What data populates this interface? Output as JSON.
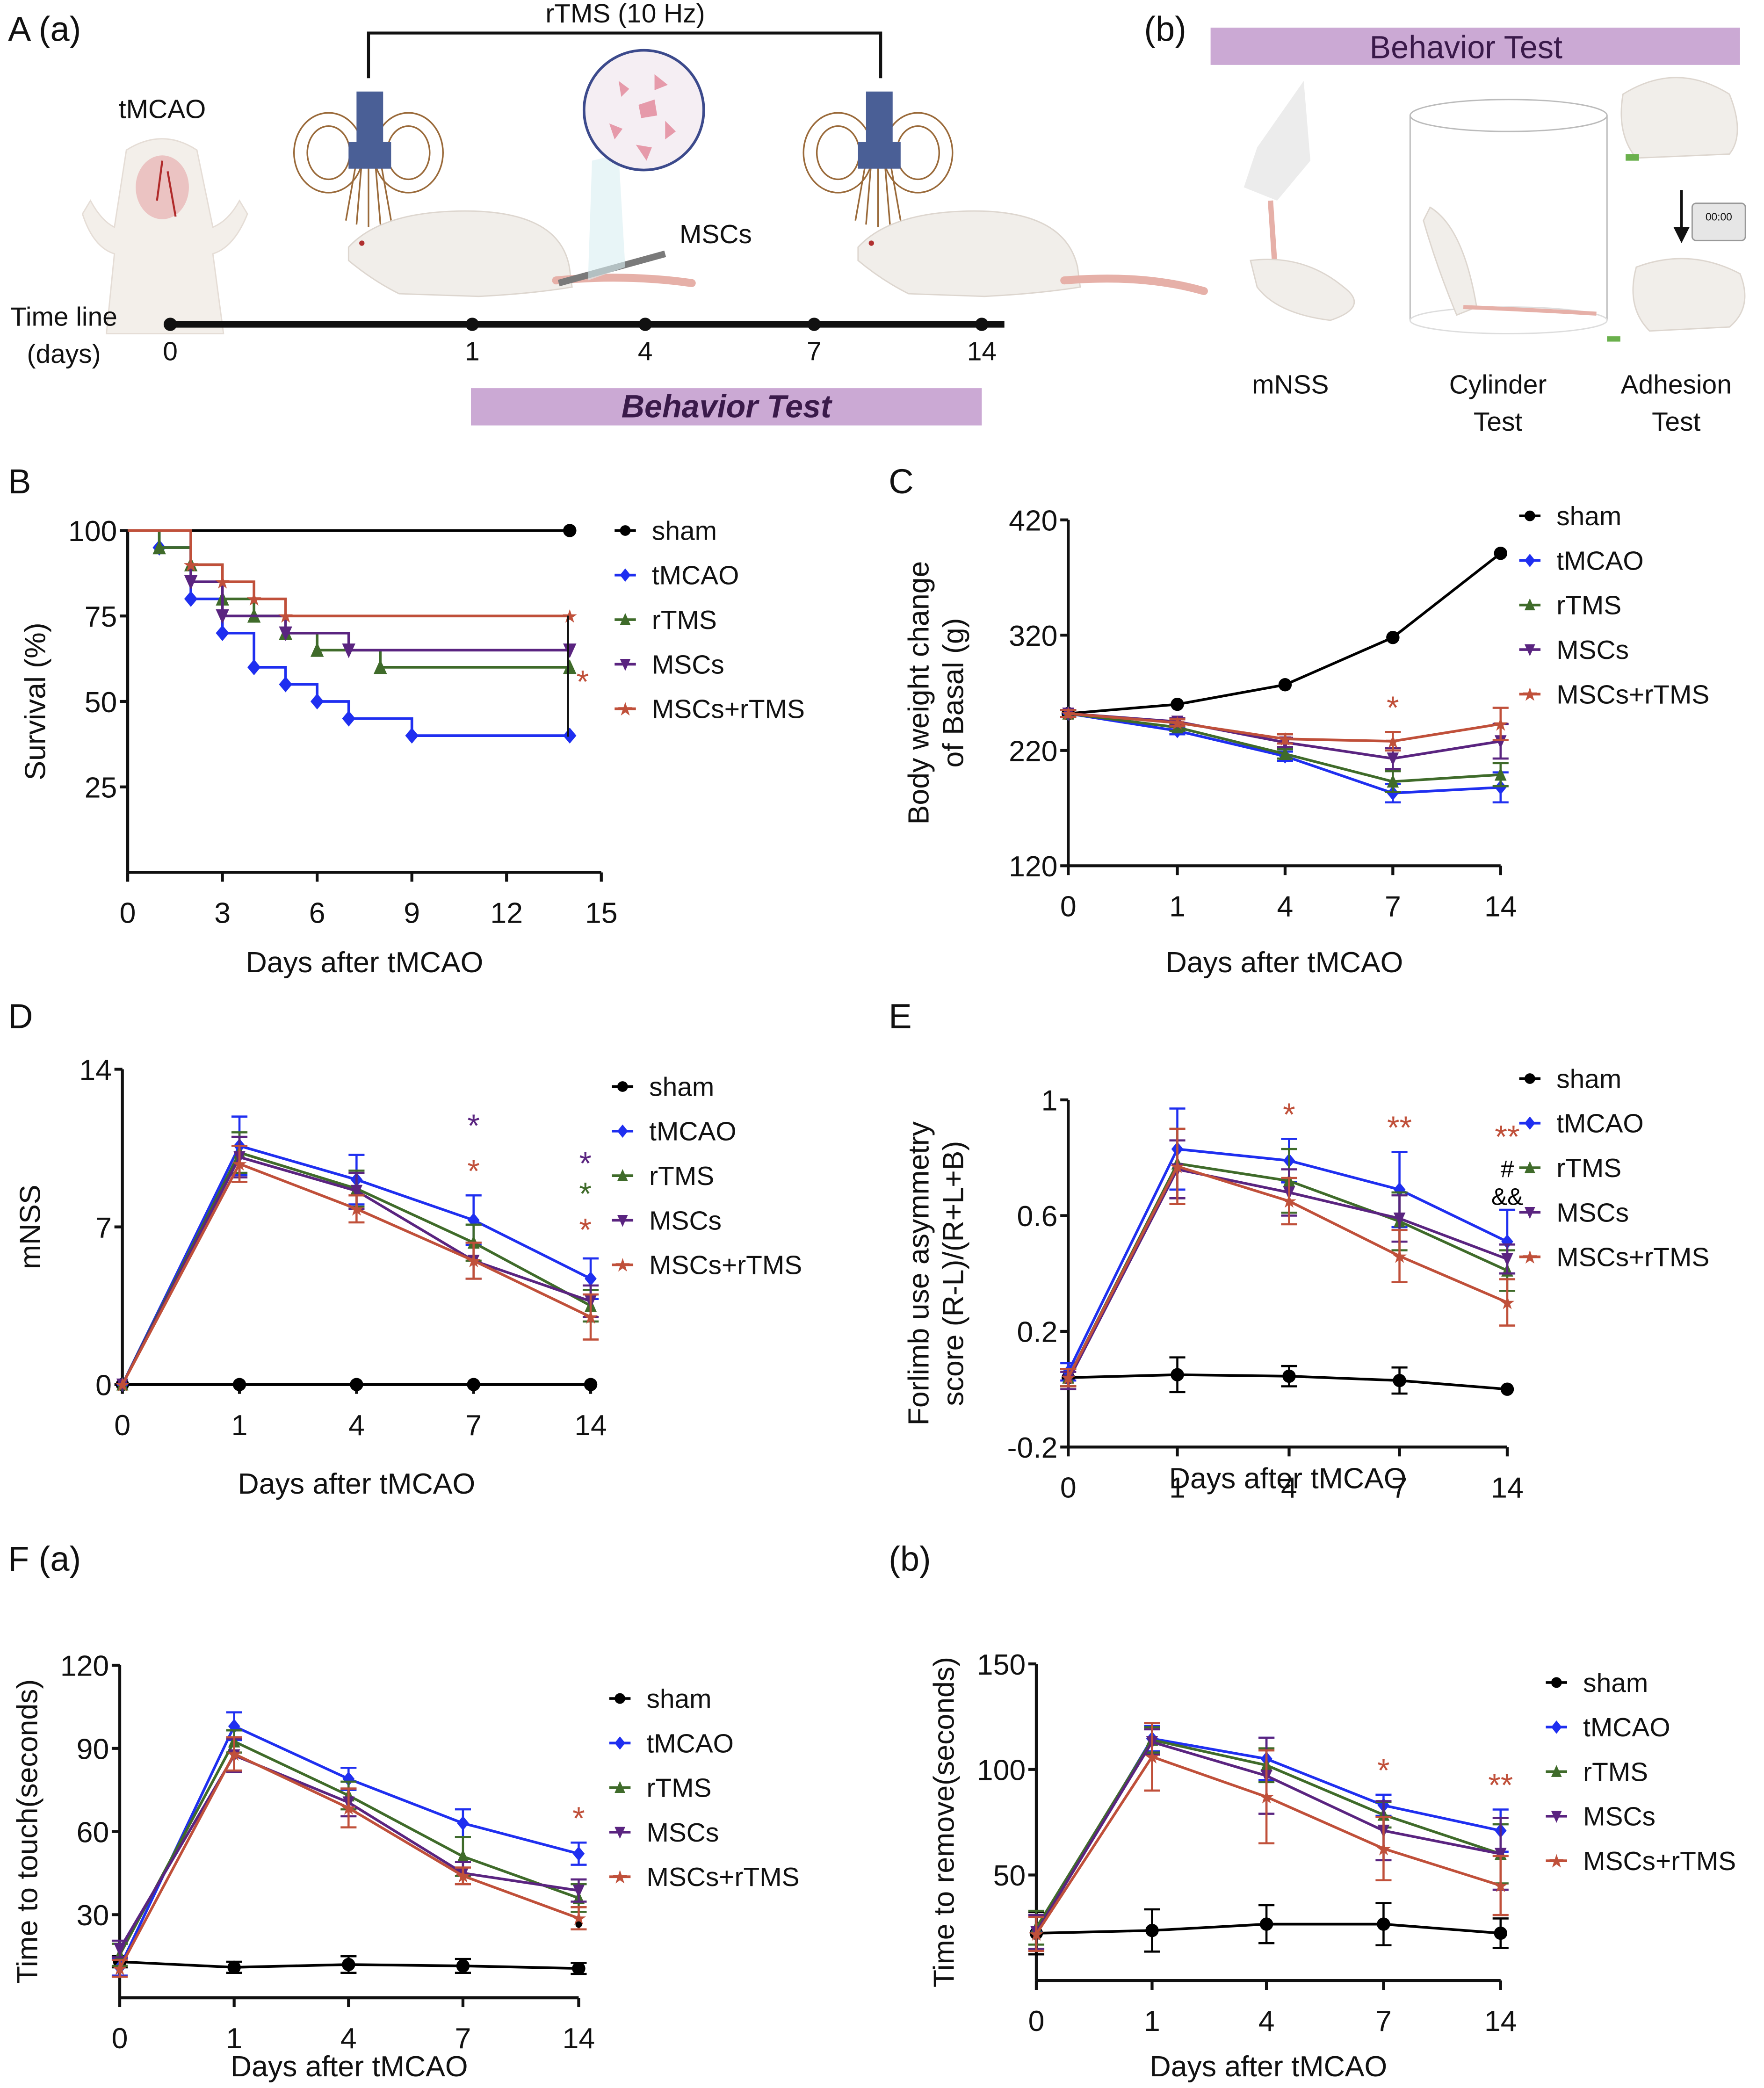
{
  "colors": {
    "sham": "#000000",
    "tMCAO": "#1f2ff0",
    "rTMS": "#3f6b2a",
    "MSCs": "#5a2480",
    "MSCs+rTMS": "#c0503a",
    "behavior_bar": "#cba9d4",
    "coil": "#4a5f96",
    "field": "#9a6a3a"
  },
  "panel_a": {
    "letter": "A (a)",
    "protocol_label": "rTMS (10 Hz)",
    "model_label": "tMCAO",
    "cells_label": "MSCs",
    "timeline_label_1": "Time line",
    "timeline_label_2": "(days)",
    "timeline_days": [
      "0",
      "1",
      "4",
      "7",
      "14"
    ],
    "behavior_bar_label": "Behavior Test"
  },
  "panel_a_b": {
    "letter": "(b)",
    "banner_label": "Behavior Test",
    "tests": [
      {
        "line1": "mNSS",
        "line2": ""
      },
      {
        "line1": "Cylinder",
        "line2": "Test"
      },
      {
        "line1": "Adhesion",
        "line2": "Test"
      }
    ],
    "timer_text": "00:00"
  },
  "legend_labels": [
    "sham",
    "tMCAO",
    "rTMS",
    "MSCs",
    "MSCs+rTMS"
  ],
  "chart_data": [
    {
      "id": "B",
      "letter": "B",
      "type": "line",
      "style": "step",
      "title": "",
      "xlabel": "Days after tMCAO",
      "ylabel": "Survival (%)",
      "xlim": [
        0,
        15
      ],
      "ylim": [
        0,
        100
      ],
      "xticks": [
        0,
        3,
        6,
        9,
        12,
        15
      ],
      "yticks": [
        25,
        50,
        75,
        100
      ],
      "legend": "right",
      "series": [
        {
          "name": "sham",
          "marker": "circle",
          "x": [
            0,
            14
          ],
          "y": [
            100,
            100
          ]
        },
        {
          "name": "tMCAO",
          "marker": "diamond",
          "x": [
            0,
            1,
            2,
            3,
            4,
            5,
            6,
            7,
            9,
            14
          ],
          "y": [
            100,
            95,
            80,
            70,
            60,
            55,
            50,
            45,
            40,
            40
          ]
        },
        {
          "name": "rTMS",
          "marker": "triangle-up",
          "x": [
            0,
            1,
            2,
            3,
            4,
            5,
            6,
            8,
            14
          ],
          "y": [
            100,
            95,
            90,
            80,
            75,
            70,
            65,
            60,
            60
          ]
        },
        {
          "name": "MSCs",
          "marker": "triangle-down",
          "x": [
            0,
            2,
            3,
            5,
            7,
            14
          ],
          "y": [
            100,
            85,
            75,
            70,
            65,
            65
          ]
        },
        {
          "name": "MSCs+rTMS",
          "marker": "star",
          "x": [
            0,
            2,
            3,
            4,
            5,
            14
          ],
          "y": [
            100,
            90,
            85,
            80,
            75,
            75
          ]
        }
      ],
      "annotations": [
        {
          "text": "*",
          "color_key": "MSCs+rTMS",
          "note": "bracket MSCs+rTMS vs tMCAO at day 14"
        }
      ]
    },
    {
      "id": "C",
      "letter": "C",
      "type": "line",
      "title": "",
      "xlabel": "Days after tMCAO",
      "ylabel": "Body weight change of Basal (g)",
      "ylabel_lines": [
        "Body weight change",
        "of Basal (g)"
      ],
      "categories": [
        "0",
        "1",
        "4",
        "7",
        "14"
      ],
      "ylim": [
        120,
        420
      ],
      "yticks": [
        120,
        220,
        320,
        420
      ],
      "legend": "top-right",
      "series": [
        {
          "name": "sham",
          "marker": "circle",
          "values": [
            252,
            260,
            277,
            318,
            391
          ],
          "err": [
            0,
            0,
            0,
            0,
            0
          ]
        },
        {
          "name": "tMCAO",
          "marker": "diamond",
          "values": [
            252,
            237,
            215,
            183,
            188
          ],
          "err": [
            3,
            3,
            4,
            8,
            13
          ]
        },
        {
          "name": "rTMS",
          "marker": "triangle-up",
          "values": [
            252,
            240,
            217,
            193,
            199
          ],
          "err": [
            3,
            3,
            4,
            9,
            10
          ]
        },
        {
          "name": "MSCs",
          "marker": "triangle-down",
          "values": [
            252,
            245,
            227,
            213,
            228
          ],
          "err": [
            3,
            3,
            4,
            9,
            15
          ]
        },
        {
          "name": "MSCs+rTMS",
          "marker": "star",
          "values": [
            252,
            244,
            230,
            228,
            243
          ],
          "err": [
            3,
            3,
            4,
            8,
            14
          ]
        }
      ],
      "annotations": [
        {
          "x_index": 3,
          "text": "*",
          "color_key": "MSCs+rTMS"
        }
      ]
    },
    {
      "id": "D",
      "letter": "D",
      "type": "line",
      "title": "",
      "xlabel": "Days after tMCAO",
      "ylabel": "mNSS",
      "categories": [
        "0",
        "1",
        "4",
        "7",
        "14"
      ],
      "ylim": [
        0,
        14
      ],
      "yticks": [
        0,
        7,
        14
      ],
      "legend": "top-right",
      "series": [
        {
          "name": "sham",
          "marker": "circle",
          "values": [
            0,
            0,
            0,
            0,
            0
          ],
          "err": [
            0,
            0,
            0,
            0,
            0
          ]
        },
        {
          "name": "tMCAO",
          "marker": "diamond",
          "values": [
            0,
            10.6,
            9.1,
            7.3,
            4.7
          ],
          "err": [
            0,
            1.3,
            1.1,
            1.1,
            0.9
          ]
        },
        {
          "name": "rTMS",
          "marker": "triangle-up",
          "values": [
            0,
            10.3,
            8.7,
            6.3,
            3.5
          ],
          "err": [
            0,
            0.9,
            0.8,
            0.8,
            0.7
          ]
        },
        {
          "name": "MSCs",
          "marker": "triangle-down",
          "values": [
            0,
            10.1,
            8.6,
            5.5,
            3.7
          ],
          "err": [
            0,
            0.9,
            0.8,
            0.8,
            0.7
          ]
        },
        {
          "name": "MSCs+rTMS",
          "marker": "star",
          "values": [
            0,
            9.8,
            7.8,
            5.5,
            3.0
          ],
          "err": [
            0,
            0.8,
            0.6,
            0.8,
            1.0
          ]
        }
      ],
      "annotations": [
        {
          "x_index": 3,
          "text": "*",
          "color_key": "MSCs",
          "level": 2
        },
        {
          "x_index": 3,
          "text": "*",
          "color_key": "MSCs+rTMS",
          "level": 1
        },
        {
          "x_index": 4,
          "text": "*",
          "color_key": "MSCs",
          "level": 3
        },
        {
          "x_index": 4,
          "text": "*",
          "color_key": "rTMS",
          "level": 2
        },
        {
          "x_index": 4,
          "text": "*",
          "color_key": "MSCs+rTMS",
          "level": 1
        }
      ]
    },
    {
      "id": "E",
      "letter": "E",
      "type": "line",
      "title": "",
      "xlabel": "Days after tMCAO",
      "ylabel": "Forlimb use asymmetry score (R-L)/(R+L+B)",
      "ylabel_lines": [
        "Forlimb use asymmetry",
        "score (R-L)/(R+L+B)"
      ],
      "categories": [
        "0",
        "1",
        "4",
        "7",
        "14"
      ],
      "ylim": [
        -0.2,
        1.0
      ],
      "yticks": [
        -0.2,
        0.2,
        0.6,
        1.0
      ],
      "legend": "top-right",
      "series": [
        {
          "name": "sham",
          "marker": "circle",
          "values": [
            0.04,
            0.05,
            0.045,
            0.03,
            0.0
          ],
          "err": [
            0.03,
            0.06,
            0.035,
            0.045,
            0.0
          ]
        },
        {
          "name": "tMCAO",
          "marker": "diamond",
          "values": [
            0.06,
            0.83,
            0.79,
            0.69,
            0.51
          ],
          "err": [
            0.03,
            0.14,
            0.075,
            0.13,
            0.11
          ]
        },
        {
          "name": "rTMS",
          "marker": "triangle-up",
          "values": [
            0.04,
            0.78,
            0.72,
            0.58,
            0.41
          ],
          "err": [
            0.03,
            0.12,
            0.11,
            0.1,
            0.07
          ]
        },
        {
          "name": "MSCs",
          "marker": "triangle-down",
          "values": [
            0.03,
            0.76,
            0.68,
            0.59,
            0.45
          ],
          "err": [
            0.03,
            0.1,
            0.08,
            0.08,
            0.05
          ]
        },
        {
          "name": "MSCs+rTMS",
          "marker": "star",
          "values": [
            0.04,
            0.77,
            0.65,
            0.46,
            0.3
          ],
          "err": [
            0.03,
            0.13,
            0.08,
            0.09,
            0.08
          ]
        }
      ],
      "annotations": [
        {
          "x_index": 2,
          "text": "*",
          "color_key": "MSCs+rTMS"
        },
        {
          "x_index": 3,
          "text": "**",
          "color_key": "MSCs+rTMS"
        },
        {
          "x_index": 4,
          "text": "**",
          "color_key": "MSCs+rTMS"
        },
        {
          "x_index": 4,
          "text": "#",
          "color_key": "sham"
        },
        {
          "x_index": 4,
          "text": "&&",
          "color_key": "sham"
        }
      ]
    },
    {
      "id": "Fa",
      "letter": "F (a)",
      "type": "line",
      "title": "",
      "xlabel": "Days after tMCAO",
      "ylabel": "Time to touch(seconds)",
      "categories": [
        "0",
        "1",
        "4",
        "7",
        "14"
      ],
      "ylim": [
        0,
        120
      ],
      "yticks": [
        30,
        60,
        90,
        120
      ],
      "legend": "right",
      "series": [
        {
          "name": "sham",
          "marker": "circle",
          "values": [
            13,
            11,
            12,
            11.5,
            10.6
          ],
          "err": [
            2,
            2,
            3,
            2.5,
            2
          ]
        },
        {
          "name": "tMCAO",
          "marker": "diamond",
          "values": [
            11,
            98,
            79,
            63,
            52
          ],
          "err": [
            3,
            5,
            4,
            5,
            4
          ]
        },
        {
          "name": "rTMS",
          "marker": "triangle-up",
          "values": [
            15.5,
            92.5,
            73,
            51,
            36
          ],
          "err": [
            4,
            4,
            5,
            7,
            5
          ]
        },
        {
          "name": "MSCs",
          "marker": "triangle-down",
          "values": [
            17.6,
            87.5,
            70.5,
            45,
            38.7
          ],
          "err": [
            3,
            6,
            5,
            4,
            4
          ]
        },
        {
          "name": "MSCs+rTMS",
          "marker": "star",
          "values": [
            10.6,
            88,
            68.5,
            44,
            28.7
          ],
          "err": [
            3,
            6,
            7,
            3,
            4
          ]
        }
      ],
      "annotations": [
        {
          "x_index": 4,
          "text": "*",
          "color_key": "MSCs+rTMS"
        },
        {
          "x_index": 4,
          "text": "•",
          "color_key": "sham"
        }
      ]
    },
    {
      "id": "Fb",
      "letter": "(b)",
      "type": "line",
      "title": "",
      "xlabel": "Days after tMCAO",
      "ylabel": "Time to remove(seconds)",
      "categories": [
        "0",
        "1",
        "4",
        "7",
        "14"
      ],
      "ylim": [
        0,
        150
      ],
      "yticks": [
        50,
        100,
        150
      ],
      "legend": "right",
      "series": [
        {
          "name": "sham",
          "marker": "circle",
          "values": [
            22.4,
            23.7,
            26.7,
            26.7,
            22.4
          ],
          "err": [
            10,
            10,
            9,
            10,
            7
          ]
        },
        {
          "name": "tMCAO",
          "marker": "diamond",
          "values": [
            23,
            114.6,
            105,
            83,
            71
          ],
          "err": [
            8,
            6,
            10,
            5,
            10
          ]
        },
        {
          "name": "rTMS",
          "marker": "triangle-up",
          "values": [
            25,
            114,
            102,
            78.5,
            60
          ],
          "err": [
            8,
            6,
            8,
            6,
            14
          ]
        },
        {
          "name": "MSCs",
          "marker": "triangle-down",
          "values": [
            23,
            113,
            97,
            71,
            60
          ],
          "err": [
            8,
            6,
            18,
            14,
            17
          ]
        },
        {
          "name": "MSCs+rTMS",
          "marker": "star",
          "values": [
            22,
            106,
            87,
            62.5,
            45
          ],
          "err": [
            8,
            16,
            22,
            15,
            14
          ]
        }
      ],
      "annotations": [
        {
          "x_index": 3,
          "text": "*",
          "color_key": "MSCs+rTMS"
        },
        {
          "x_index": 4,
          "text": "**",
          "color_key": "MSCs+rTMS"
        }
      ]
    }
  ]
}
